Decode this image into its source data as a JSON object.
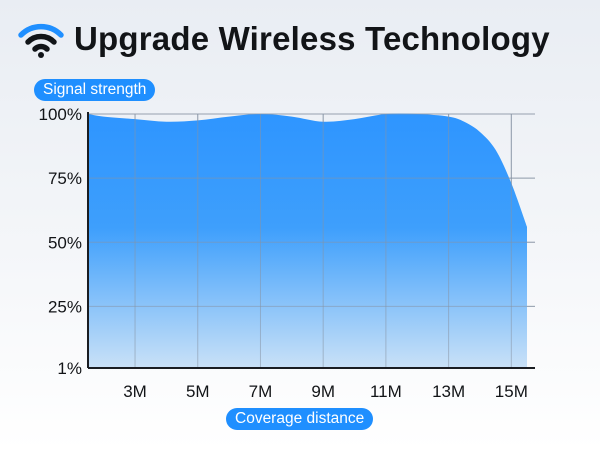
{
  "header": {
    "title": "Upgrade Wireless Technology",
    "icon": "wifi-icon",
    "icon_color": "#1f8fff"
  },
  "colors": {
    "accent": "#1f8fff",
    "area_top": "#2e95ff",
    "area_bottom": "#c9e1f7",
    "grid": "#8793a4",
    "text": "#121417"
  },
  "chart_data": {
    "type": "area",
    "ylabel": "Signal strength",
    "xlabel": "Coverage distance",
    "x_ticks": [
      "3M",
      "5M",
      "7M",
      "9M",
      "11M",
      "13M",
      "15M"
    ],
    "y_ticks": [
      "1%",
      "25%",
      "50%",
      "75%",
      "100%"
    ],
    "xlim": [
      1.5,
      15.5
    ],
    "ylim": [
      1,
      100
    ],
    "grid": true,
    "series": [
      {
        "x": [
          1.5,
          2,
          3,
          4,
          5,
          6,
          7,
          8,
          9,
          10,
          11,
          12,
          13,
          13.5,
          14,
          14.5,
          15,
          15.5
        ],
        "values": [
          100,
          99,
          98,
          97,
          97.5,
          99,
          100,
          99,
          97,
          98,
          100,
          100,
          99,
          97,
          93,
          86,
          73,
          56
        ]
      }
    ]
  }
}
